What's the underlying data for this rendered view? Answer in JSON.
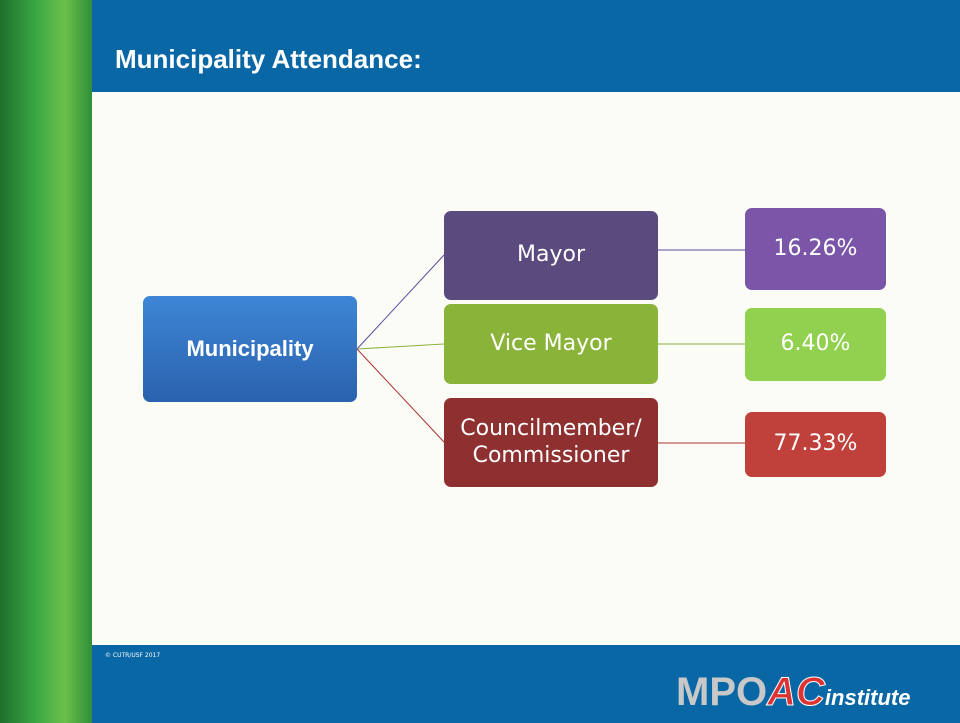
{
  "header": {
    "title": "Municipality Attendance:"
  },
  "diagram": {
    "root": {
      "label": "Municipality"
    },
    "branches": [
      {
        "label": "Mayor",
        "share": "16.26%"
      },
      {
        "label": "Vice Mayor",
        "share": "6.40%"
      },
      {
        "label": "Councilmember/ Commissioner",
        "share": "77.33%"
      }
    ]
  },
  "footer": {
    "copyright": "© CUTR/USF 2017",
    "logo": {
      "mpo": "MPO",
      "ac": "AC",
      "institute": "institute"
    }
  }
}
